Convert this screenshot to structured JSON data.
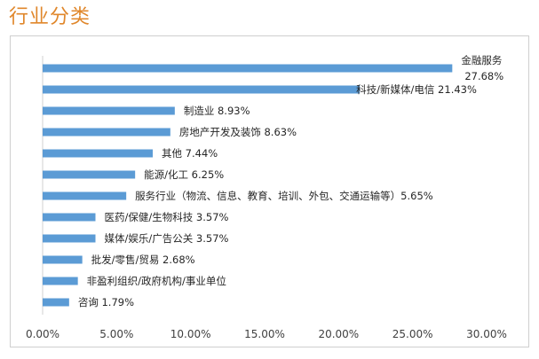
{
  "page": {
    "title": "行业分类"
  },
  "chart_data": {
    "type": "bar",
    "orientation": "horizontal",
    "title": "",
    "xlabel": "",
    "ylabel": "",
    "xlim": [
      0,
      30
    ],
    "x_ticks": [
      "0.00%",
      "5.00%",
      "10.00%",
      "15.00%",
      "20.00%",
      "25.00%",
      "30.00%"
    ],
    "grid": false,
    "color": "#5b9bd5",
    "bars": [
      {
        "label": "金融服务",
        "value_label": "27.68%",
        "value": 27.68,
        "label_mode": "stacked"
      },
      {
        "label": "科技/新媒体/电信 21.43%",
        "value": 21.43,
        "label_mode": "overlap"
      },
      {
        "label": "制造业 8.93%",
        "value": 8.93
      },
      {
        "label": "房地产开发及装饰 8.63%",
        "value": 8.63
      },
      {
        "label": "其他 7.44%",
        "value": 7.44
      },
      {
        "label": "能源/化工 6.25%",
        "value": 6.25
      },
      {
        "label": "服务行业（物流、信息、教育、培训、外包、交通运输等）5.65%",
        "value": 5.65
      },
      {
        "label": "医药/保健/生物科技 3.57%",
        "value": 3.57
      },
      {
        "label": "媒体/娱乐/广告公关 3.57%",
        "value": 3.57
      },
      {
        "label": "批发/零售/贸易 2.68%",
        "value": 2.68
      },
      {
        "label": "非盈利组织/政府机构/事业单位",
        "value": 2.38
      },
      {
        "label": "咨询 1.79%",
        "value": 1.79
      }
    ]
  }
}
